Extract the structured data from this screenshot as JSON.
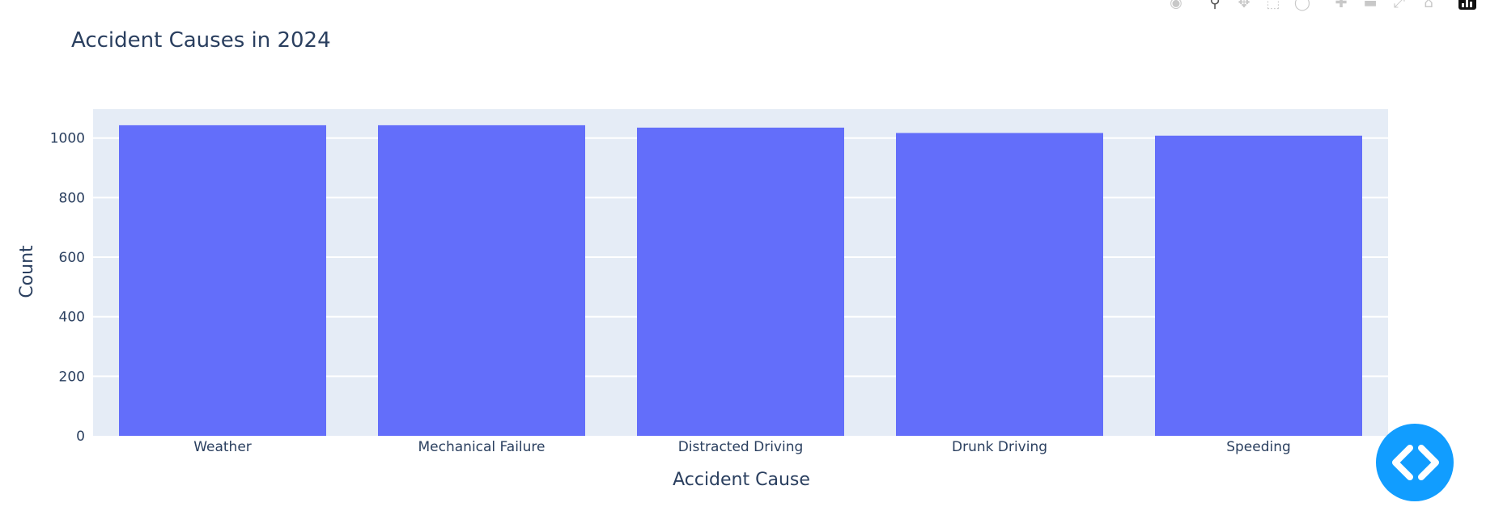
{
  "chart_data": {
    "type": "bar",
    "title": "Accident Causes in 2024",
    "xlabel": "Accident Cause",
    "ylabel": "Count",
    "categories": [
      "Weather",
      "Mechanical Failure",
      "Distracted Driving",
      "Drunk Driving",
      "Speeding"
    ],
    "values": [
      1043,
      1043,
      1035,
      1017,
      1008
    ],
    "ylim": [
      0,
      1097
    ],
    "yticks": [
      0,
      200,
      400,
      600,
      800,
      1000
    ],
    "bar_color": "#636efa",
    "plot_bg": "#e5ecf6",
    "grid": true
  },
  "modebar": {
    "icons": [
      "camera-icon",
      "zoom-icon",
      "pan-icon",
      "box-select-icon",
      "lasso-icon",
      "zoom-in-icon",
      "zoom-out-icon",
      "autoscale-icon",
      "reset-axes-icon",
      "plotly-logo-icon"
    ]
  },
  "fab": {
    "icon": "code-brackets-icon",
    "color": "#119dff"
  }
}
